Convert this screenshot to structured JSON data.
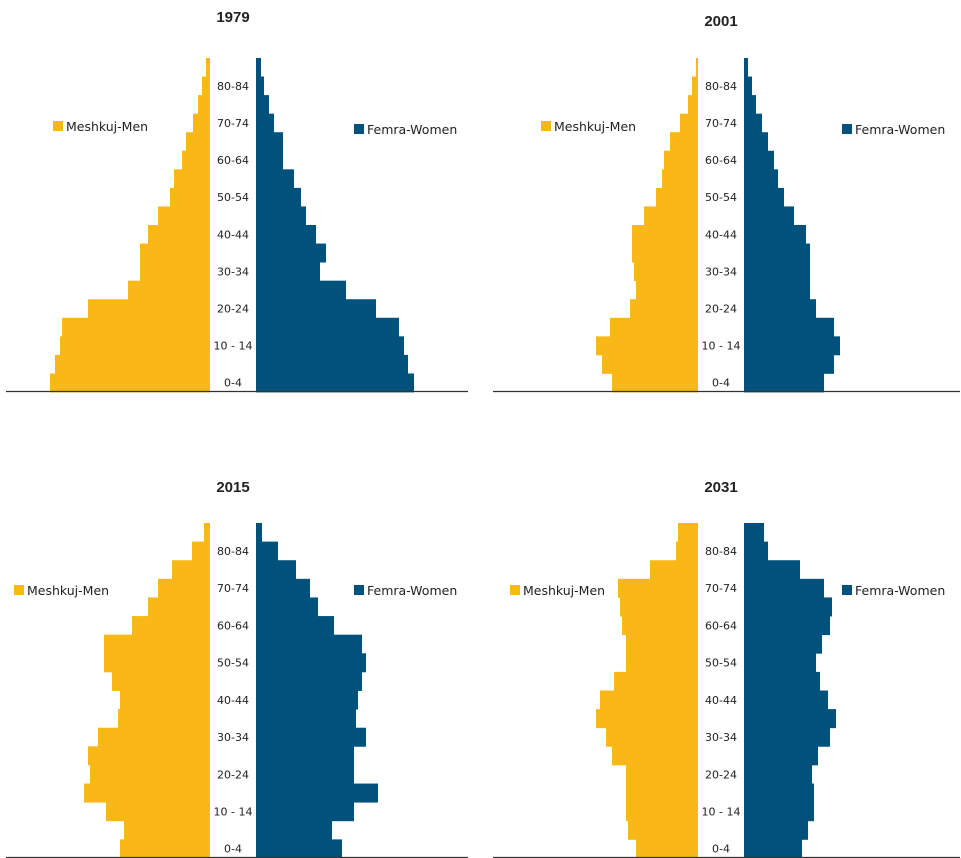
{
  "colors": {
    "men": "#F9B817",
    "women": "#00527C",
    "axis": "#333333"
  },
  "legend": {
    "men": "Meshkuj-Men",
    "women": "Femra-Women"
  },
  "chart_data": [
    {
      "type": "bar",
      "title": "1979",
      "categories": [
        "0-4",
        "5-9",
        "10-14",
        "15-19",
        "20-24",
        "25-29",
        "30-34",
        "35-39",
        "40-44",
        "45-49",
        "50-54",
        "55-59",
        "60-64",
        "65-69",
        "70-74",
        "75-79",
        "80-84",
        "85+"
      ],
      "tick_labels": [
        "0-4",
        "10 - 14",
        "20-24",
        "30-34",
        "40-44",
        "50-54",
        "60-64",
        "70-74",
        "80-84"
      ],
      "series": [
        {
          "name": "Meshkuj-Men",
          "values": [
            160,
            155,
            150,
            148,
            122,
            82,
            70,
            70,
            62,
            52,
            40,
            36,
            28,
            24,
            17,
            12,
            8,
            4
          ]
        },
        {
          "name": "Femra-Women",
          "values": [
            158,
            152,
            148,
            143,
            120,
            90,
            64,
            70,
            60,
            50,
            45,
            38,
            27,
            27,
            18,
            13,
            8,
            5
          ]
        }
      ]
    },
    {
      "type": "bar",
      "title": "2001",
      "categories": [
        "0-4",
        "5-9",
        "10-14",
        "15-19",
        "20-24",
        "25-29",
        "30-34",
        "35-39",
        "40-44",
        "45-49",
        "50-54",
        "55-59",
        "60-64",
        "65-69",
        "70-74",
        "75-79",
        "80-84",
        "85+"
      ],
      "tick_labels": [
        "0-4",
        "10 - 14",
        "20-24",
        "30-34",
        "40-44",
        "50-54",
        "60-64",
        "70-74",
        "80-84"
      ],
      "series": [
        {
          "name": "Meshkuj-Men",
          "values": [
            86,
            96,
            102,
            88,
            68,
            62,
            64,
            66,
            66,
            54,
            42,
            36,
            34,
            28,
            18,
            10,
            6,
            2
          ]
        },
        {
          "name": "Femra-Women",
          "values": [
            80,
            90,
            96,
            90,
            72,
            66,
            66,
            66,
            62,
            50,
            40,
            34,
            30,
            24,
            18,
            12,
            8,
            4
          ]
        }
      ]
    },
    {
      "type": "bar",
      "title": "2015",
      "categories": [
        "0-4",
        "5-9",
        "10-14",
        "15-19",
        "20-24",
        "25-29",
        "30-34",
        "35-39",
        "40-44",
        "45-49",
        "50-54",
        "55-59",
        "60-64",
        "65-69",
        "70-74",
        "75-79",
        "80-84",
        "85+"
      ],
      "tick_labels": [
        "0-4",
        "10 - 14",
        "20-24",
        "30-34",
        "40-44",
        "50-54",
        "60-64",
        "70-74",
        "80-84"
      ],
      "series": [
        {
          "name": "Meshkuj-Men",
          "values": [
            90,
            86,
            104,
            126,
            120,
            122,
            112,
            92,
            90,
            98,
            106,
            106,
            78,
            62,
            52,
            38,
            18,
            6
          ]
        },
        {
          "name": "Femra-Women",
          "values": [
            86,
            76,
            98,
            122,
            98,
            98,
            110,
            100,
            102,
            106,
            110,
            106,
            78,
            62,
            54,
            40,
            22,
            6
          ]
        }
      ]
    },
    {
      "type": "bar",
      "title": "2031",
      "categories": [
        "0-4",
        "5-9",
        "10-14",
        "15-19",
        "20-24",
        "25-29",
        "30-34",
        "35-39",
        "40-44",
        "45-49",
        "50-54",
        "55-59",
        "60-64",
        "65-69",
        "70-74",
        "75-79",
        "80-84",
        "85+"
      ],
      "tick_labels": [
        "0-4",
        "10 - 14",
        "20-24",
        "30-34",
        "40-44",
        "50-54",
        "60-64",
        "70-74",
        "80-84"
      ],
      "series": [
        {
          "name": "Meshkuj-Men",
          "values": [
            62,
            70,
            72,
            72,
            72,
            86,
            92,
            102,
            98,
            84,
            72,
            72,
            76,
            78,
            80,
            48,
            22,
            20
          ]
        },
        {
          "name": "Femra-Women",
          "values": [
            58,
            64,
            70,
            70,
            68,
            74,
            86,
            92,
            84,
            76,
            72,
            78,
            86,
            88,
            80,
            56,
            24,
            20
          ]
        }
      ]
    }
  ]
}
